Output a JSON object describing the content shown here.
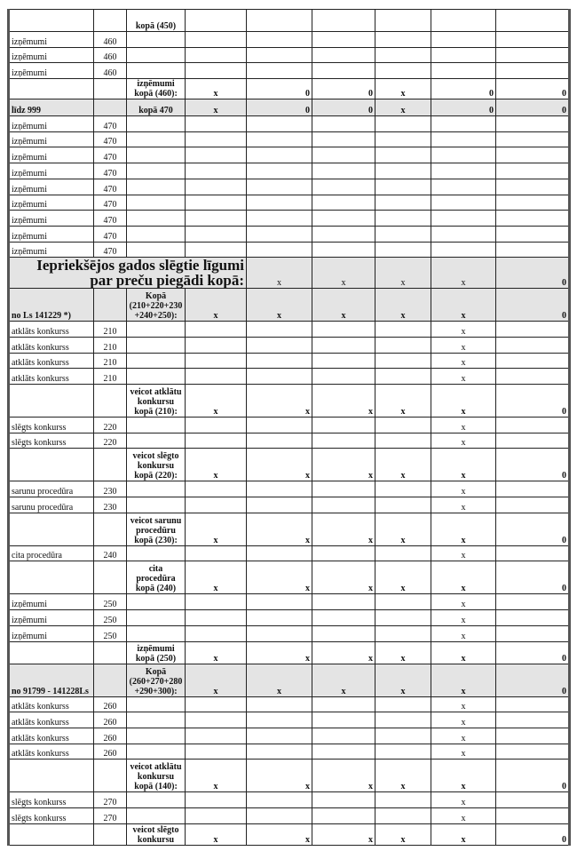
{
  "table": {
    "rows": [
      {
        "type": "subtotal_plain",
        "cells": [
          "",
          "",
          "kopā (450)",
          "",
          "",
          "",
          "",
          "",
          ""
        ]
      },
      {
        "type": "data",
        "cells": [
          "izņēmumi",
          "460",
          "",
          "",
          "",
          "",
          "",
          "",
          ""
        ]
      },
      {
        "type": "data",
        "cells": [
          "izņēmumi",
          "460",
          "",
          "",
          "",
          "",
          "",
          "",
          ""
        ]
      },
      {
        "type": "data",
        "cells": [
          "izņēmumi",
          "460",
          "",
          "",
          "",
          "",
          "",
          "",
          ""
        ]
      },
      {
        "type": "total460",
        "cells": [
          "",
          "",
          "izņēmumi kopā (460):",
          "x",
          "0",
          "0",
          "x",
          "0",
          "0"
        ]
      },
      {
        "type": "group460",
        "cells": [
          "līdz 999",
          "",
          "kopā 470",
          "x",
          "0",
          "0",
          "x",
          "0",
          "0"
        ]
      },
      {
        "type": "data",
        "cells": [
          "izņēmumi",
          "470",
          "",
          "",
          "",
          "",
          "",
          "",
          ""
        ]
      },
      {
        "type": "data",
        "cells": [
          "izņēmumi",
          "470",
          "",
          "",
          "",
          "",
          "",
          "",
          ""
        ]
      },
      {
        "type": "data",
        "cells": [
          "izņēmumi",
          "470",
          "",
          "",
          "",
          "",
          "",
          "",
          ""
        ]
      },
      {
        "type": "data",
        "cells": [
          "izņēmumi",
          "470",
          "",
          "",
          "",
          "",
          "",
          "",
          ""
        ]
      },
      {
        "type": "data",
        "cells": [
          "izņēmumi",
          "470",
          "",
          "",
          "",
          "",
          "",
          "",
          ""
        ]
      },
      {
        "type": "data",
        "cells": [
          "izņēmumi",
          "470",
          "",
          "",
          "",
          "",
          "",
          "",
          ""
        ]
      },
      {
        "type": "data",
        "cells": [
          "izņēmumi",
          "470",
          "",
          "",
          "",
          "",
          "",
          "",
          ""
        ]
      },
      {
        "type": "data",
        "cells": [
          "izņēmumi",
          "470",
          "",
          "",
          "",
          "",
          "",
          "",
          ""
        ]
      },
      {
        "type": "data",
        "cells": [
          "izņēmumi",
          "470",
          "",
          "",
          "",
          "",
          "",
          "",
          ""
        ]
      },
      {
        "type": "heading",
        "cells": [
          "Iepriekšējos gados slēgtie līgumi par preču piegādi kopā:",
          "x",
          "x",
          "x",
          "x",
          "0"
        ]
      },
      {
        "type": "group",
        "cells": [
          "no Ls 141229 *)",
          "",
          "Kopā (210+220+230 +240+250):",
          "x",
          "x",
          "x",
          "x",
          "x",
          "0"
        ]
      },
      {
        "type": "datax",
        "cells": [
          "atklāts konkurss",
          "210",
          "",
          "",
          "",
          "",
          "",
          "x",
          ""
        ]
      },
      {
        "type": "datax",
        "cells": [
          "atklāts konkurss",
          "210",
          "",
          "",
          "",
          "",
          "",
          "x",
          ""
        ]
      },
      {
        "type": "datax",
        "cells": [
          "atklāts konkurss",
          "210",
          "",
          "",
          "",
          "",
          "",
          "x",
          ""
        ]
      },
      {
        "type": "datax",
        "cells": [
          "atklāts konkurss",
          "210",
          "",
          "",
          "",
          "",
          "",
          "x",
          ""
        ]
      },
      {
        "type": "subtotal",
        "cells": [
          "",
          "",
          "veicot atklātu konkursu kopā (210):",
          "x",
          "x",
          "x",
          "x",
          "x",
          "0"
        ]
      },
      {
        "type": "datax",
        "cells": [
          "slēgts konkurss",
          "220",
          "",
          "",
          "",
          "",
          "",
          "x",
          ""
        ]
      },
      {
        "type": "datax",
        "cells": [
          "slēgts konkurss",
          "220",
          "",
          "",
          "",
          "",
          "",
          "x",
          ""
        ]
      },
      {
        "type": "subtotal",
        "cells": [
          "",
          "",
          "veicot slēgto konkursu kopā (220):",
          "x",
          "x",
          "x",
          "x",
          "x",
          "0"
        ]
      },
      {
        "type": "datax",
        "cells": [
          "sarunu procedūra",
          "230",
          "",
          "",
          "",
          "",
          "",
          "x",
          ""
        ]
      },
      {
        "type": "datax",
        "cells": [
          "sarunu procedūra",
          "230",
          "",
          "",
          "",
          "",
          "",
          "x",
          ""
        ]
      },
      {
        "type": "subtotal",
        "cells": [
          "",
          "",
          "veicot sarunu procedūru kopā (230):",
          "x",
          "x",
          "x",
          "x",
          "x",
          "0"
        ]
      },
      {
        "type": "datax",
        "cells": [
          "cita procedūra",
          "240",
          "",
          "",
          "",
          "",
          "",
          "x",
          ""
        ]
      },
      {
        "type": "subtotal",
        "cells": [
          "",
          "",
          "cita procedūra kopā (240)",
          "x",
          "x",
          "x",
          "x",
          "x",
          "0"
        ]
      },
      {
        "type": "datax",
        "cells": [
          "izņēmumi",
          "250",
          "",
          "",
          "",
          "",
          "",
          "x",
          ""
        ]
      },
      {
        "type": "datax",
        "cells": [
          "izņēmumi",
          "250",
          "",
          "",
          "",
          "",
          "",
          "x",
          ""
        ]
      },
      {
        "type": "datax",
        "cells": [
          "izņēmumi",
          "250",
          "",
          "",
          "",
          "",
          "",
          "x",
          ""
        ]
      },
      {
        "type": "subtotal",
        "cells": [
          "",
          "",
          "izņēmumi kopā (250)",
          "x",
          "x",
          "x",
          "x",
          "x",
          "0"
        ]
      },
      {
        "type": "group",
        "cells": [
          "no 91799 - 141228Ls",
          "",
          "Kopā (260+270+280 +290+300):",
          "x",
          "x",
          "x",
          "x",
          "x",
          "0"
        ]
      },
      {
        "type": "datax",
        "cells": [
          "atklāts konkurss",
          "260",
          "",
          "",
          "",
          "",
          "",
          "x",
          ""
        ]
      },
      {
        "type": "datax",
        "cells": [
          "atklāts konkurss",
          "260",
          "",
          "",
          "",
          "",
          "",
          "x",
          ""
        ]
      },
      {
        "type": "datax",
        "cells": [
          "atklāts konkurss",
          "260",
          "",
          "",
          "",
          "",
          "",
          "x",
          ""
        ]
      },
      {
        "type": "datax",
        "cells": [
          "atklāts konkurss",
          "260",
          "",
          "",
          "",
          "",
          "",
          "x",
          ""
        ]
      },
      {
        "type": "subtotal",
        "cells": [
          "",
          "",
          "veicot atklātu konkursu kopā (140):",
          "x",
          "x",
          "x",
          "x",
          "x",
          "0"
        ]
      },
      {
        "type": "datax",
        "cells": [
          "slēgts konkurss",
          "270",
          "",
          "",
          "",
          "",
          "",
          "x",
          ""
        ]
      },
      {
        "type": "datax",
        "cells": [
          "slēgts konkurss",
          "270",
          "",
          "",
          "",
          "",
          "",
          "x",
          ""
        ]
      },
      {
        "type": "subtotal",
        "cells": [
          "",
          "",
          "veicot slēgto konkursu",
          "x",
          "x",
          "x",
          "x",
          "x",
          "0"
        ]
      }
    ]
  }
}
